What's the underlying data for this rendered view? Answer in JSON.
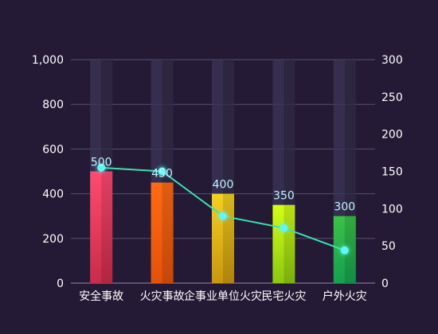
{
  "chart_data": {
    "type": "bar",
    "title": "",
    "categories": [
      "安全事故",
      "火灾事故",
      "企事业单位火灾",
      "民宅火灾",
      "户外火灾"
    ],
    "series": [
      {
        "type": "bar",
        "axis": "left",
        "values": [
          500,
          450,
          400,
          350,
          300
        ],
        "data_labels": [
          "500",
          "450",
          "400",
          "350",
          "300"
        ]
      },
      {
        "type": "line",
        "axis": "right",
        "values": [
          155,
          150,
          90,
          74,
          44
        ]
      }
    ],
    "y_left": {
      "min": 0,
      "max": 1000,
      "ticks": [
        "0",
        "200",
        "400",
        "600",
        "800",
        "1,000"
      ]
    },
    "y_right": {
      "min": 0,
      "max": 300,
      "ticks": [
        "0",
        "50",
        "100",
        "150",
        "200",
        "250",
        "300"
      ]
    },
    "grid": true,
    "colors": {
      "background": "#251a35",
      "bars": [
        [
          "#ff4a72",
          "#c92c4a"
        ],
        [
          "#ff6a14",
          "#e2520a"
        ],
        [
          "#f4d020",
          "#c89610"
        ],
        [
          "#d4ff14",
          "#8ac812"
        ],
        [
          "#3cc046",
          "#14a050"
        ]
      ],
      "line": "#3ee0b0",
      "marker": "#5ff6f6"
    }
  }
}
